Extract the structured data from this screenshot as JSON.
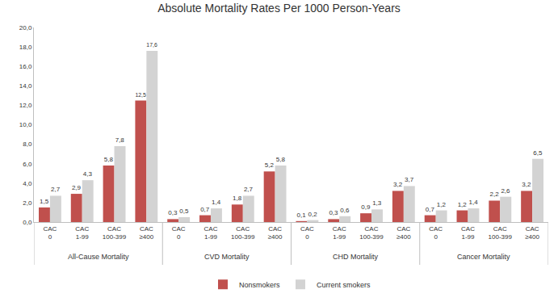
{
  "chart_data": {
    "type": "bar",
    "title": "Absolute Mortality Rates Per 1000 Person-Years",
    "categories": [
      "CAC 0",
      "CAC 1-99",
      "CAC 100-399",
      "CAC ≥400",
      "CAC 0",
      "CAC 1-99",
      "CAC 100-399",
      "CAC ≥400",
      "CAC 0",
      "CAC 1-99",
      "CAC 100-399",
      "CAC ≥400",
      "CAC 0",
      "CAC 1-99",
      "CAC 100-399",
      "CAC ≥400"
    ],
    "category_groups": [
      "All-Cause Mortality",
      "All-Cause Mortality",
      "All-Cause Mortality",
      "All-Cause Mortality",
      "CVD Mortality",
      "CVD Mortality",
      "CVD Mortality",
      "CVD Mortality",
      "CHD Mortality",
      "CHD Mortality",
      "CHD Mortality",
      "CHD Mortality",
      "Cancer Mortality",
      "Cancer Mortality",
      "Cancer Mortality",
      "Cancer Mortality"
    ],
    "series": [
      {
        "name": "Nonsmokers",
        "color": "#c0504d",
        "values": [
          1.5,
          2.9,
          5.8,
          12.5,
          0.3,
          0.7,
          1.8,
          5.2,
          0.1,
          0.3,
          0.9,
          3.2,
          0.7,
          1.2,
          2.2,
          3.2
        ],
        "value_labels": [
          "1,5",
          "2,9",
          "5,8",
          "12,5",
          "0,3",
          "0,7",
          "1,8",
          "5,2",
          "0,1",
          "0,3",
          "0,9",
          "3,2",
          "0,7",
          "1,2",
          "2,2",
          "3,2"
        ]
      },
      {
        "name": "Current smokers",
        "color": "#d3d3d3",
        "values": [
          2.7,
          4.3,
          7.8,
          17.6,
          0.5,
          1.4,
          2.7,
          5.8,
          0.2,
          0.6,
          1.3,
          3.7,
          1.2,
          1.4,
          2.6,
          6.5
        ],
        "value_labels": [
          "2,7",
          "4,3",
          "7,8",
          "17,6",
          "0,5",
          "1,4",
          "2,7",
          "5,8",
          "0,2",
          "0,6",
          "1,3",
          "3,7",
          "1,2",
          "1,4",
          "2,6",
          "6,5"
        ]
      }
    ],
    "ylim": [
      0,
      20
    ],
    "yticks": [
      {
        "value": 0,
        "label": "0,0"
      },
      {
        "value": 2,
        "label": "2,0"
      },
      {
        "value": 4,
        "label": "4,0"
      },
      {
        "value": 6,
        "label": "6,0"
      },
      {
        "value": 8,
        "label": "8,0"
      },
      {
        "value": 10,
        "label": "10,0"
      },
      {
        "value": 12,
        "label": "12,0"
      },
      {
        "value": 14,
        "label": "14,0"
      },
      {
        "value": 16,
        "label": "16,0"
      },
      {
        "value": 18,
        "label": "18,0"
      },
      {
        "value": 20,
        "label": "20,0"
      }
    ],
    "grid": false,
    "legend": "bottom",
    "data_labels": true
  }
}
